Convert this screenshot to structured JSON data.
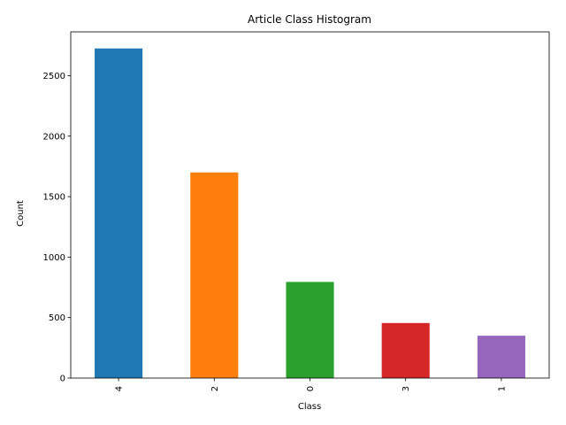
{
  "chart_data": {
    "type": "bar",
    "title": "Article Class Histogram",
    "xlabel": "Class",
    "ylabel": "Count",
    "categories": [
      "4",
      "2",
      "0",
      "3",
      "1"
    ],
    "values": [
      2725,
      1700,
      795,
      455,
      350
    ],
    "colors": [
      "#1f77b4",
      "#ff7f0e",
      "#2ca02c",
      "#d62728",
      "#9467bd"
    ],
    "ylim": [
      0,
      2862
    ],
    "yticks": [
      0,
      500,
      1000,
      1500,
      2000,
      2500
    ],
    "x_tick_rotation": "vertical",
    "grid": false,
    "legend": "none"
  }
}
